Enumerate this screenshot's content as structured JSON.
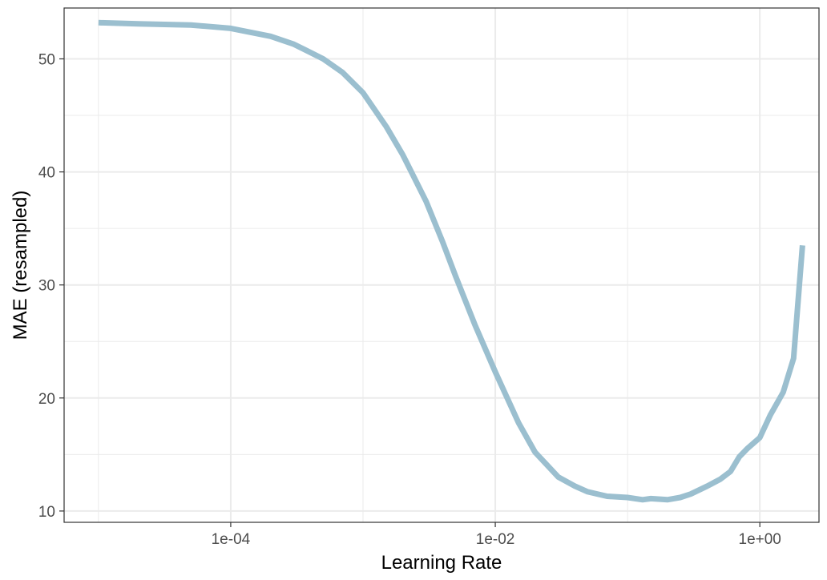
{
  "chart_data": {
    "type": "line",
    "title": "",
    "xlabel": "Learning Rate",
    "ylabel": "MAE (resampled)",
    "x_scale": "log10",
    "xlim": [
      5.5e-06,
      2.8
    ],
    "ylim": [
      9.0,
      54.5
    ],
    "x_ticks": [
      {
        "value": 0.0001,
        "label": "1e-04"
      },
      {
        "value": 0.01,
        "label": "1e-02"
      },
      {
        "value": 1,
        "label": "1e+00"
      }
    ],
    "y_ticks": [
      {
        "value": 10,
        "label": "10"
      },
      {
        "value": 20,
        "label": "20"
      },
      {
        "value": 30,
        "label": "30"
      },
      {
        "value": 40,
        "label": "40"
      },
      {
        "value": 50,
        "label": "50"
      }
    ],
    "x_minor_ticks": [
      1e-05,
      0.001,
      0.1
    ],
    "y_minor_ticks": [
      15,
      25,
      35,
      45
    ],
    "grid": true,
    "legend": "none",
    "colors": {
      "line": "#9bbfcf",
      "grid": "#ebebeb",
      "border": "#333333"
    },
    "series": [
      {
        "x": [
          1e-05,
          2e-05,
          5e-05,
          0.0001,
          0.0002,
          0.0003,
          0.0005,
          0.0007,
          0.001,
          0.0015,
          0.002,
          0.003,
          0.004,
          0.005,
          0.007,
          0.01,
          0.015,
          0.02,
          0.03,
          0.04,
          0.05,
          0.07,
          0.1,
          0.13,
          0.15,
          0.2,
          0.25,
          0.3,
          0.4,
          0.5,
          0.6,
          0.7,
          0.8,
          1.0,
          1.2,
          1.5,
          1.8,
          2.1
        ],
        "y": [
          53.2,
          53.1,
          53.0,
          52.7,
          52.0,
          51.3,
          50.0,
          48.8,
          47.0,
          44.0,
          41.5,
          37.4,
          33.8,
          30.8,
          26.5,
          22.3,
          17.8,
          15.2,
          13.0,
          12.2,
          11.7,
          11.3,
          11.2,
          11.0,
          11.1,
          11.0,
          11.2,
          11.5,
          12.2,
          12.8,
          13.5,
          14.8,
          15.5,
          16.5,
          18.5,
          20.5,
          23.5,
          33.5
        ]
      }
    ]
  }
}
